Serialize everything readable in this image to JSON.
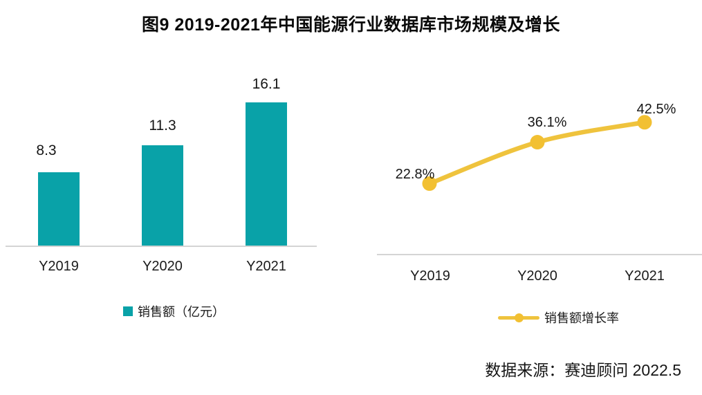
{
  "title": "图9 2019-2021年中国能源行业数据库市场规模及增长",
  "source": "数据来源：赛迪顾问 2022.5",
  "colors": {
    "bar": "#09a2a8",
    "line": "#efc33d",
    "marker": "#f2c032",
    "axis": "#d4d4d4",
    "text": "#141414"
  },
  "chart_data": [
    {
      "type": "bar",
      "title": "图9 2019-2021年中国能源行业数据库市场规模及增长",
      "series_name": "销售额（亿元）",
      "categories": [
        "Y2019",
        "Y2020",
        "Y2021"
      ],
      "values": [
        8.3,
        11.3,
        16.1
      ],
      "labels": [
        "8.3",
        "11.3",
        "16.1"
      ],
      "ylabel": "销售额（亿元）",
      "ylim": [
        0,
        18
      ],
      "grid": false,
      "legend_position": "bottom"
    },
    {
      "type": "line",
      "series_name": "销售额增长率",
      "categories": [
        "Y2019",
        "Y2020",
        "Y2021"
      ],
      "values": [
        22.8,
        36.1,
        42.5
      ],
      "labels": [
        "22.8%",
        "36.1%",
        "42.5%"
      ],
      "unit": "%",
      "ylim": [
        0,
        50
      ],
      "grid": false,
      "legend_position": "bottom"
    }
  ]
}
